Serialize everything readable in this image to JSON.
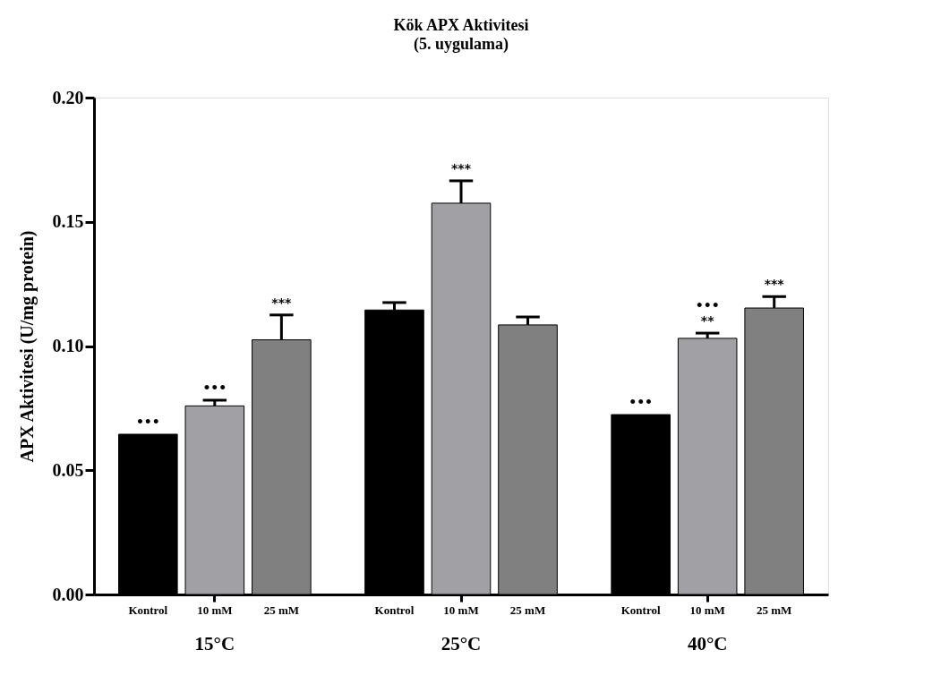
{
  "chart_data": {
    "type": "bar",
    "title": "Kök APX Aktivitesi",
    "subtitle": "(5. uygulama)",
    "ylabel": "APX Aktivitesi (U/mg protein)",
    "categories": [
      "15°C",
      "25°C",
      "40°C"
    ],
    "series": [
      {
        "name": "Kontrol",
        "color": "#000000",
        "values": [
          0.0645,
          0.1145,
          0.0724
        ],
        "errors": [
          null,
          0.003,
          null
        ],
        "value_labels": [
          "•••",
          null,
          "•••"
        ]
      },
      {
        "name": "10 mM",
        "color": "#a0a0a5",
        "values": [
          0.0759,
          0.1575,
          0.1031
        ],
        "errors": [
          0.0023,
          0.009,
          0.0021
        ],
        "value_labels": [
          "•••",
          "***",
          "•••\n**"
        ]
      },
      {
        "name": "25 mM",
        "color": "#808080",
        "values": [
          0.1025,
          0.1085,
          0.1153
        ],
        "errors": [
          0.01,
          0.0032,
          0.0046
        ],
        "value_labels": [
          "***",
          null,
          "***"
        ]
      }
    ],
    "ylim": [
      0,
      0.2
    ],
    "yticks": [
      {
        "value": 0,
        "label": "0.00"
      },
      0.05,
      {
        "value": 0.1,
        "label": "0.10"
      },
      0.15,
      {
        "value": 0.2,
        "label": "0.20"
      }
    ],
    "grid": false,
    "legend": false
  }
}
